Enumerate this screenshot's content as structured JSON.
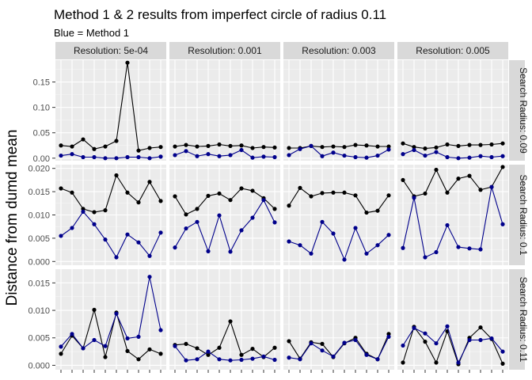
{
  "chart_data": {
    "type": "line",
    "title": "Method 1 & 2 results from imperfect circle of radius 0.11",
    "subtitle": "Blue = Method 1",
    "ylabel": "Distance from dumd mean",
    "xlabel": "",
    "grid": true,
    "col_strips": [
      "Resolution: 5e-04",
      "Resolution: 0.001",
      "Resolution: 0.003",
      "Resolution: 0.005"
    ],
    "row_strips": [
      "Search Radius: 0.09",
      "Search Radius: 0.1",
      "Search Radius: 0.11"
    ],
    "x_range": [
      0.5,
      10.5
    ],
    "row_axes": [
      {
        "ylim": [
          -0.005,
          0.193
        ],
        "ticks": [
          0.0,
          0.05,
          0.1,
          0.15
        ],
        "tick_labels": [
          "0.00",
          "0.05",
          "0.10",
          "0.15"
        ]
      },
      {
        "ylim": [
          -0.0008,
          0.0208
        ],
        "ticks": [
          0.0,
          0.005,
          0.01,
          0.015,
          0.02
        ],
        "tick_labels": [
          "0.000",
          "0.005",
          "0.010",
          "0.015",
          "0.020"
        ]
      },
      {
        "ylim": [
          -0.0008,
          0.0175
        ],
        "ticks": [
          0.0,
          0.005,
          0.01,
          0.015
        ],
        "tick_labels": [
          "0.000",
          "0.005",
          "0.010",
          "0.015"
        ]
      }
    ],
    "colors": {
      "method2": "#000000",
      "method1": "#00008b"
    },
    "panels": [
      [
        {
          "black": [
            0.025,
            0.023,
            0.037,
            0.018,
            0.023,
            0.034,
            0.188,
            0.015,
            0.02,
            0.022
          ],
          "blue": [
            0.005,
            0.008,
            0.002,
            0.002,
            0.0,
            0.0,
            0.002,
            0.002,
            0.0,
            0.003
          ]
        },
        {
          "black": [
            0.023,
            0.026,
            0.023,
            0.024,
            0.027,
            0.024,
            0.025,
            0.02,
            0.022,
            0.021
          ],
          "blue": [
            0.006,
            0.014,
            0.004,
            0.008,
            0.004,
            0.006,
            0.016,
            0.001,
            0.003,
            0.002
          ]
        },
        {
          "black": [
            0.02,
            0.02,
            0.024,
            0.022,
            0.023,
            0.022,
            0.026,
            0.025,
            0.023,
            0.023
          ],
          "blue": [
            0.006,
            0.018,
            0.024,
            0.004,
            0.011,
            0.005,
            0.002,
            0.001,
            0.005,
            0.017
          ]
        },
        {
          "black": [
            0.029,
            0.022,
            0.019,
            0.021,
            0.027,
            0.024,
            0.026,
            0.026,
            0.027,
            0.029
          ],
          "blue": [
            0.008,
            0.016,
            0.005,
            0.012,
            0.002,
            0.0,
            0.001,
            0.004,
            0.002,
            0.004
          ]
        }
      ],
      [
        {
          "black": [
            0.0157,
            0.0148,
            0.0113,
            0.0106,
            0.011,
            0.0185,
            0.0148,
            0.0127,
            0.0171,
            0.013
          ],
          "blue": [
            0.0055,
            0.0072,
            0.0107,
            0.008,
            0.0047,
            0.0009,
            0.0058,
            0.0041,
            0.0012,
            0.0062
          ]
        },
        {
          "black": [
            0.014,
            0.0101,
            0.0113,
            0.0141,
            0.0146,
            0.0132,
            0.0157,
            0.0152,
            0.0136,
            0.0113
          ],
          "blue": [
            0.003,
            0.0071,
            0.0085,
            0.0022,
            0.0099,
            0.0021,
            0.0067,
            0.0094,
            0.0132,
            0.0084
          ]
        },
        {
          "black": [
            0.012,
            0.0158,
            0.014,
            0.0147,
            0.0148,
            0.0148,
            0.0142,
            0.0105,
            0.0109,
            0.0142
          ],
          "blue": [
            0.0043,
            0.0035,
            0.0017,
            0.0085,
            0.006,
            0.0004,
            0.0072,
            0.0017,
            0.0035,
            0.0057
          ]
        },
        {
          "black": [
            0.0175,
            0.014,
            0.0146,
            0.0197,
            0.0148,
            0.0178,
            0.0184,
            0.0154,
            0.016,
            0.0203
          ],
          "blue": [
            0.0029,
            0.0137,
            0.0009,
            0.002,
            0.0078,
            0.0031,
            0.0028,
            0.0026,
            0.016,
            0.008
          ]
        }
      ],
      [
        {
          "black": [
            0.0021,
            0.0054,
            0.0031,
            0.0101,
            0.0015,
            0.0096,
            0.0026,
            0.0011,
            0.0029,
            0.0021
          ],
          "blue": [
            0.0034,
            0.0057,
            0.0031,
            0.0046,
            0.0035,
            0.0094,
            0.0049,
            0.0052,
            0.0161,
            0.0064
          ]
        },
        {
          "black": [
            0.0037,
            0.0039,
            0.0031,
            0.0019,
            0.0032,
            0.008,
            0.0019,
            0.003,
            0.0015,
            0.0032
          ],
          "blue": [
            0.0035,
            0.0009,
            0.0011,
            0.0025,
            0.0011,
            0.0009,
            0.001,
            0.0012,
            0.0016,
            0.001
          ]
        },
        {
          "black": [
            0.0044,
            0.0012,
            0.0042,
            0.0039,
            0.0015,
            0.004,
            0.005,
            0.0021,
            0.0011,
            0.0057
          ],
          "blue": [
            0.0014,
            0.0011,
            0.004,
            0.0027,
            0.0016,
            0.0041,
            0.0046,
            0.0019,
            0.0011,
            0.0052
          ]
        },
        {
          "black": [
            0.0005,
            0.007,
            0.0043,
            0.0005,
            0.0062,
            0.0002,
            0.005,
            0.0069,
            0.0048,
            0.0003
          ],
          "blue": [
            0.0036,
            0.0068,
            0.0058,
            0.004,
            0.0071,
            0.0005,
            0.0046,
            0.0046,
            0.0049,
            0.0025
          ]
        }
      ]
    ]
  }
}
